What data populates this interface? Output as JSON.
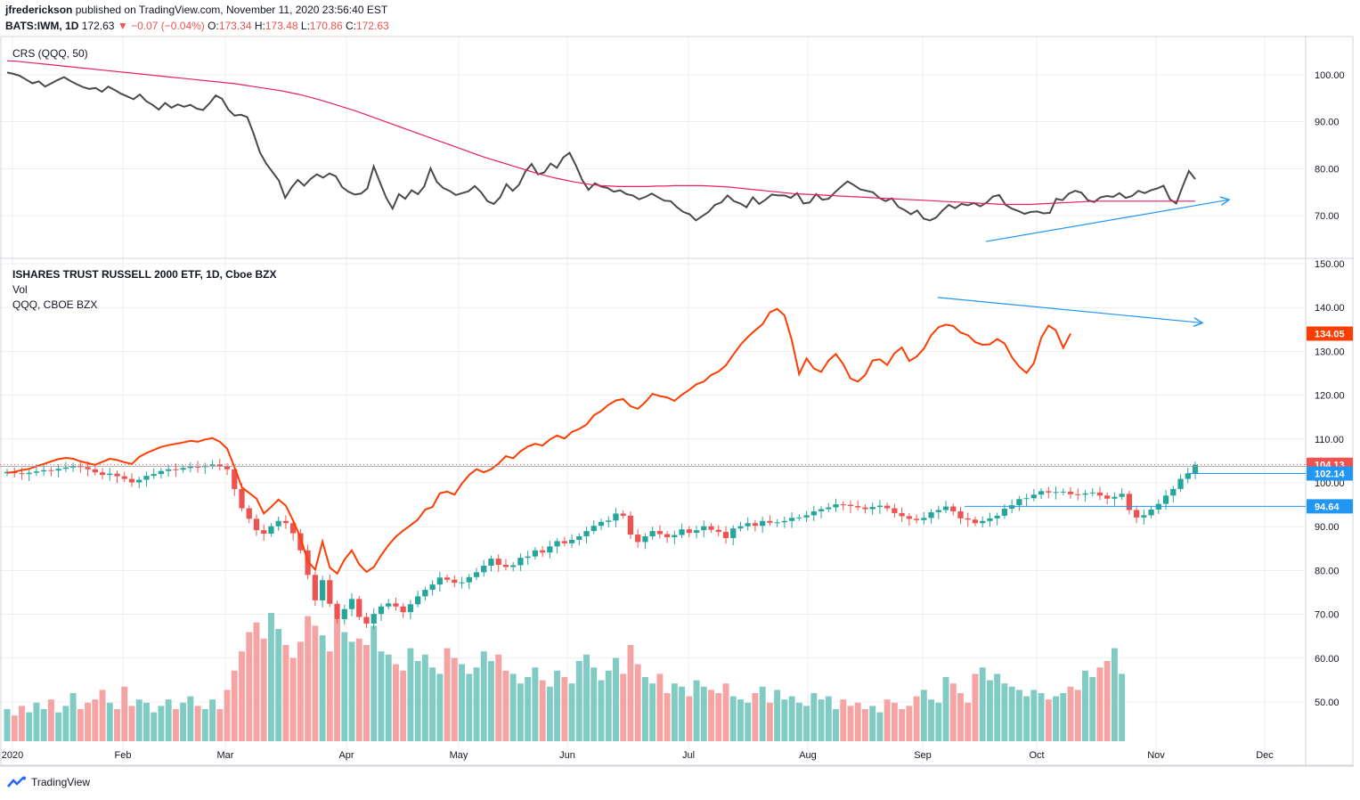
{
  "header": {
    "author": "jfrederickson",
    "published_text": "published on TradingView.com, November 11, 2020 23:56:40 EST",
    "symbol_label": "BATS:IWM, 1D",
    "last": "172.63",
    "change_arrow": "▼",
    "change": "−0.07 (−0.04%)",
    "o_label": "O:",
    "o_val": "173.34",
    "h_label": "H:",
    "h_val": "173.48",
    "l_label": "L:",
    "l_val": "170.86",
    "c_label": "C:",
    "c_val": "172.63"
  },
  "legends": {
    "crs": "CRS (QQQ, 50)",
    "main": "ISHARES TRUST RUSSELL 2000 ETF, 1D, Cboe BZX",
    "vol": "Vol",
    "qqq": "QQQ, CBOE BZX"
  },
  "footer": {
    "brand": "TradingView"
  },
  "colors": {
    "up": "#26a69a",
    "down": "#ef5350",
    "vol_up": "#80cbc4",
    "vol_down": "#f6a3a3",
    "crs_line": "#4a4a4a",
    "crs_ma": "#e91e63",
    "qqq_line": "#ff3d00",
    "trend": "#2196f3",
    "grid": "#e0e3eb",
    "axis_text": "#131722"
  },
  "chart_data": [
    {
      "type": "line",
      "name": "CRS (QQQ, 50)",
      "y_ticks": [
        "100.00",
        "90.00",
        "80.00",
        "70.00"
      ],
      "ylim": [
        62,
        105
      ],
      "crs": [
        100.5,
        100.2,
        99.8,
        99,
        98.2,
        98.6,
        97.5,
        98.2,
        98.9,
        99.5,
        98.7,
        98,
        97.4,
        97,
        97.2,
        96.4,
        97.5,
        96.8,
        96,
        95.4,
        94.8,
        95.8,
        94.4,
        93.6,
        92.6,
        94,
        93,
        93.7,
        93.2,
        93.6,
        92.8,
        92.5,
        93.9,
        95.6,
        94.9,
        92.6,
        91.3,
        91.5,
        91,
        87.5,
        83.5,
        81.1,
        79.3,
        77.5,
        73.8,
        76,
        77.6,
        76.4,
        77.8,
        78.8,
        78.1,
        79,
        78.4,
        76.1,
        75.1,
        74.5,
        74.7,
        75.8,
        80.5,
        77.1,
        73.8,
        71.5,
        74.6,
        73.6,
        75.4,
        74.6,
        76.2,
        80.1,
        77.2,
        75.9,
        75.3,
        74.4,
        74.8,
        75.2,
        76.3,
        75,
        73.1,
        72.5,
        73.9,
        76.7,
        75.3,
        76.6,
        79.4,
        81,
        78.8,
        79.2,
        81.1,
        80.2,
        82.4,
        83.4,
        80.7,
        77.6,
        75.5,
        76.9,
        76.2,
        75.9,
        75.1,
        75.4,
        74.6,
        74.3,
        73.5,
        74,
        74.7,
        73.9,
        73.2,
        73.1,
        71.8,
        70.8,
        70.3,
        69,
        69.9,
        70.8,
        72.3,
        72.8,
        74.3,
        73.1,
        72.6,
        71.8,
        73.9,
        72.5,
        73.4,
        74.5,
        74.3,
        74.3,
        73.8,
        74.8,
        72.6,
        72.8,
        74.6,
        73.4,
        73.6,
        75,
        76.2,
        77.3,
        76.5,
        75.6,
        75.3,
        75,
        73.8,
        73.1,
        73.7,
        71.9,
        71.2,
        70.3,
        71.1,
        69.4,
        69,
        69.6,
        71.1,
        72.3,
        71.6,
        72.5,
        72.2,
        72.7,
        72,
        72.8,
        74.1,
        74.4,
        72.3,
        71.5,
        71,
        70.4,
        70.8,
        70.9,
        70.5,
        70.6,
        73.6,
        73.3,
        74.7,
        75.3,
        74.9,
        73.3,
        72.9,
        73.9,
        74.2,
        74,
        74.8,
        73.8,
        74.2,
        75.3,
        74.8,
        75.4,
        75.8,
        76.4,
        73.5,
        72.6,
        76.2,
        79.5,
        77.8
      ],
      "crs_ma": [
        103,
        102.9,
        102.7,
        102.5,
        102.3,
        102.1,
        101.9,
        101.7,
        101.5,
        101.3,
        101.1,
        100.9,
        100.7,
        100.5,
        100.3,
        100.1,
        99.9,
        99.7,
        99.5,
        99.3,
        99.1,
        98.9,
        98.7,
        98.5,
        98.3,
        98.1,
        97.8,
        97.5,
        97.2,
        96.9,
        96.6,
        96.2,
        95.8,
        95.3,
        94.8,
        94.2,
        93.6,
        93,
        92.4,
        91.7,
        91,
        90.3,
        89.6,
        88.9,
        88.2,
        87.5,
        86.8,
        86.1,
        85.4,
        84.7,
        84,
        83.3,
        82.6,
        82,
        81.4,
        80.8,
        80.2,
        79.6,
        79,
        78.5,
        78,
        77.6,
        77.2,
        76.9,
        76.6,
        76.4,
        76.3,
        76.2,
        76.2,
        76.2,
        76.2,
        76.3,
        76.3,
        76.4,
        76.4,
        76.4,
        76.4,
        76.3,
        76.2,
        76.1,
        75.9,
        75.7,
        75.5,
        75.3,
        75.1,
        74.9,
        74.7,
        74.6,
        74.5,
        74.4,
        74.3,
        74.2,
        74.1,
        74,
        73.9,
        73.8,
        73.7,
        73.6,
        73.5,
        73.4,
        73.3,
        73.2,
        73.1,
        73,
        72.9,
        72.8,
        72.7,
        72.6,
        72.5,
        72.4,
        72.4,
        72.4,
        72.4,
        72.5,
        72.6,
        72.7,
        72.8,
        72.9,
        73,
        73.1,
        73.1,
        73.1,
        73.1,
        73.1,
        73.1,
        73.1,
        73.1,
        73.1,
        73.1,
        73.1,
        73.1
      ],
      "trend_line": {
        "from": [
          1107,
          64.5
        ],
        "to": [
          1380,
          73.4
        ]
      }
    },
    {
      "type": "candlestick",
      "name": "ISHARES TRUST RUSSELL 2000 ETF, 1D, Cboe BZX",
      "x_tick_labels": [
        "2020",
        "Feb",
        "Mar",
        "Apr",
        "May",
        "Jun",
        "Jul",
        "Aug",
        "Sep",
        "Oct",
        "Nov",
        "Dec"
      ],
      "y_ticks": [
        "150.00",
        "140.00",
        "130.00",
        "120.00",
        "110.00",
        "100.00",
        "90.00",
        "80.00",
        "70.00",
        "60.00",
        "50.00"
      ],
      "price_labels": [
        {
          "value": "134.05",
          "color": "#ff3d00"
        },
        {
          "value": "104.13",
          "color": "#ef5350"
        },
        {
          "value": "102.14",
          "color": "#2196f3"
        },
        {
          "value": "94.64",
          "color": "#2196f3"
        }
      ],
      "horizontal_levels": [
        102.14,
        94.64
      ],
      "dotted_level": 104.13,
      "iwm_close": [
        102.5,
        102.2,
        102,
        102.3,
        102.6,
        102.9,
        102.8,
        103.2,
        103.5,
        103.9,
        103.6,
        103.1,
        102.4,
        101.8,
        102.1,
        101.5,
        100.9,
        100.1,
        100.7,
        101.6,
        102,
        102.7,
        103.1,
        103,
        103.4,
        103.7,
        103.6,
        103.9,
        104.2,
        103.8,
        103.1,
        98.6,
        94.2,
        91.8,
        89.2,
        88.4,
        90.1,
        91.3,
        90.8,
        88.5,
        84.6,
        79,
        73.2,
        77.8,
        72.4,
        68.9,
        71.2,
        73.5,
        69.4,
        67.9,
        70.1,
        71.8,
        72.5,
        71.8,
        70.5,
        72.3,
        74.1,
        75.6,
        76.8,
        78.4,
        77.9,
        77.2,
        77.3,
        78.5,
        79.6,
        81.1,
        82.7,
        81.3,
        80.8,
        81.2,
        82.9,
        83.2,
        84.6,
        84.1,
        85.5,
        86.7,
        86.2,
        87,
        87.8,
        89,
        90.2,
        91.1,
        91.4,
        93,
        92.5,
        88.2,
        86.5,
        87.8,
        89,
        88.3,
        87.6,
        88.1,
        89.4,
        88.6,
        89.2,
        90.1,
        89.3,
        88.8,
        87.4,
        89.6,
        90.1,
        90.8,
        90.2,
        91.3,
        90.9,
        91,
        91.3,
        92,
        92.1,
        92.6,
        93.5,
        94,
        94.4,
        95.1,
        95,
        94.7,
        94.4,
        94,
        94.5,
        94.8,
        94.2,
        93.1,
        92.4,
        91.8,
        91.5,
        92,
        93.3,
        93.8,
        94.6,
        93.5,
        91.9,
        91.6,
        90.8,
        91.3,
        91.9,
        92.5,
        94.1,
        94.9,
        96.3,
        96.5,
        97.3,
        98.1,
        97.8,
        97.9,
        98,
        97.4,
        97.3,
        97.6,
        97.8,
        97.1,
        96.4,
        96.8,
        97.5,
        93.8,
        92.1,
        92.6,
        93.9,
        95.2,
        97.1,
        98.6,
        100.9,
        102.14,
        104.13
      ],
      "qqq_close": [
        102.3,
        102.5,
        102.9,
        103.2,
        103.8,
        104.3,
        104.9,
        105.4,
        105.7,
        105.5,
        104.9,
        104.5,
        104.1,
        104.8,
        105.5,
        105.2,
        104.7,
        104.3,
        105.9,
        106.8,
        107.5,
        108.2,
        108.6,
        108.9,
        109.2,
        109.6,
        109.4,
        109.9,
        110.2,
        109.4,
        107.8,
        103.6,
        99,
        97.7,
        96.4,
        93,
        94.5,
        96.2,
        94.8,
        91.4,
        87.5,
        82.1,
        80.2,
        86.6,
        80.7,
        79.3,
        82.5,
        84.6,
        81.4,
        79.7,
        80.8,
        83.5,
        85.8,
        87.7,
        89.1,
        90.3,
        91.6,
        93.9,
        94.5,
        97.6,
        98,
        97.3,
        99.8,
        101.8,
        103.1,
        102.4,
        103.1,
        104.4,
        106.1,
        105.6,
        107.2,
        108.3,
        108.9,
        108.5,
        109.9,
        110.8,
        110.1,
        111.6,
        112.3,
        113.3,
        115.4,
        116.4,
        117.8,
        118.8,
        119.1,
        117.5,
        116.9,
        118.4,
        120.3,
        119.8,
        119.5,
        118.7,
        120.1,
        121.2,
        122.5,
        123.1,
        124.6,
        125.4,
        126.8,
        129.2,
        131.5,
        133.3,
        134.8,
        136.2,
        138.9,
        139.7,
        138.2,
        132.5,
        124.8,
        128.4,
        126.1,
        125.3,
        127.9,
        129.4,
        127.1,
        123.8,
        123.1,
        124.6,
        127.9,
        128.2,
        126.9,
        129.6,
        130.9,
        127.8,
        128.8,
        130.6,
        133.7,
        135.5,
        136.1,
        135.8,
        134.3,
        133.7,
        132.1,
        131.5,
        131.6,
        132.8,
        131.8,
        128.7,
        126.5,
        125.1,
        127.3,
        133.1,
        135.9,
        134.8,
        130.8,
        134.05
      ],
      "volume": [
        44,
        42,
        45,
        43,
        46,
        44,
        47,
        43,
        45,
        49,
        44,
        46,
        47,
        50,
        46,
        44,
        51,
        45,
        47,
        46,
        43,
        45,
        47,
        44,
        46,
        48,
        45,
        44,
        47,
        44,
        50,
        56,
        62,
        68,
        71,
        66,
        74,
        69,
        64,
        60,
        65,
        73,
        70,
        67,
        62,
        72,
        68,
        65,
        66,
        64,
        70,
        62,
        61,
        58,
        56,
        63,
        59,
        61,
        57,
        55,
        63,
        60,
        58,
        55,
        57,
        62,
        59,
        61,
        56,
        55,
        52,
        54,
        57,
        53,
        51,
        56,
        54,
        52,
        59,
        61,
        57,
        53,
        56,
        60,
        55,
        64,
        58,
        54,
        52,
        55,
        49,
        52,
        51,
        48,
        53,
        51,
        50,
        49,
        52,
        48,
        47,
        46,
        49,
        51,
        46,
        50,
        47,
        48,
        46,
        45,
        49,
        47,
        48,
        44,
        47,
        45,
        46,
        44,
        45,
        43,
        47,
        46,
        44,
        45,
        48,
        50,
        47,
        46,
        54,
        52,
        49,
        46,
        55,
        57,
        53,
        55,
        52,
        51,
        50,
        48,
        50,
        49,
        47,
        48,
        49,
        51,
        50,
        56,
        54,
        57,
        59,
        63,
        55
      ]
    }
  ]
}
